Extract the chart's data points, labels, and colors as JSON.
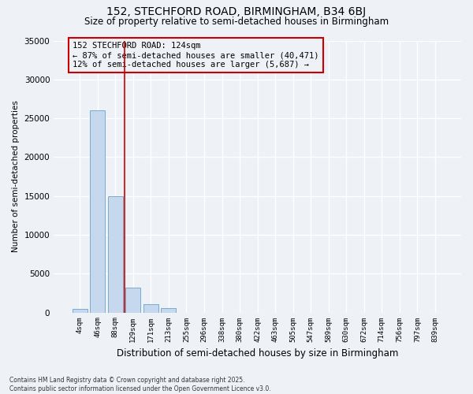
{
  "title": "152, STECHFORD ROAD, BIRMINGHAM, B34 6BJ",
  "subtitle": "Size of property relative to semi-detached houses in Birmingham",
  "xlabel": "Distribution of semi-detached houses by size in Birmingham",
  "ylabel": "Number of semi-detached properties",
  "categories": [
    "4sqm",
    "46sqm",
    "88sqm",
    "129sqm",
    "171sqm",
    "213sqm",
    "255sqm",
    "296sqm",
    "338sqm",
    "380sqm",
    "422sqm",
    "463sqm",
    "505sqm",
    "547sqm",
    "589sqm",
    "630sqm",
    "672sqm",
    "714sqm",
    "756sqm",
    "797sqm",
    "839sqm"
  ],
  "values": [
    500,
    26000,
    15000,
    3200,
    1100,
    600,
    0,
    0,
    0,
    0,
    0,
    0,
    0,
    0,
    0,
    0,
    0,
    0,
    0,
    0,
    0
  ],
  "bar_color": "#c5d8ed",
  "bar_edge_color": "#7aabcf",
  "vline_x": 2.5,
  "vline_color": "#cc0000",
  "annotation_title": "152 STECHFORD ROAD: 124sqm",
  "annotation_line1": "← 87% of semi-detached houses are smaller (40,471)",
  "annotation_line2": "12% of semi-detached houses are larger (5,687) →",
  "annotation_box_color": "#cc0000",
  "ylim": [
    0,
    35000
  ],
  "yticks": [
    0,
    5000,
    10000,
    15000,
    20000,
    25000,
    30000,
    35000
  ],
  "footer1": "Contains HM Land Registry data © Crown copyright and database right 2025.",
  "footer2": "Contains public sector information licensed under the Open Government Licence v3.0.",
  "bg_color": "#eef2f7"
}
